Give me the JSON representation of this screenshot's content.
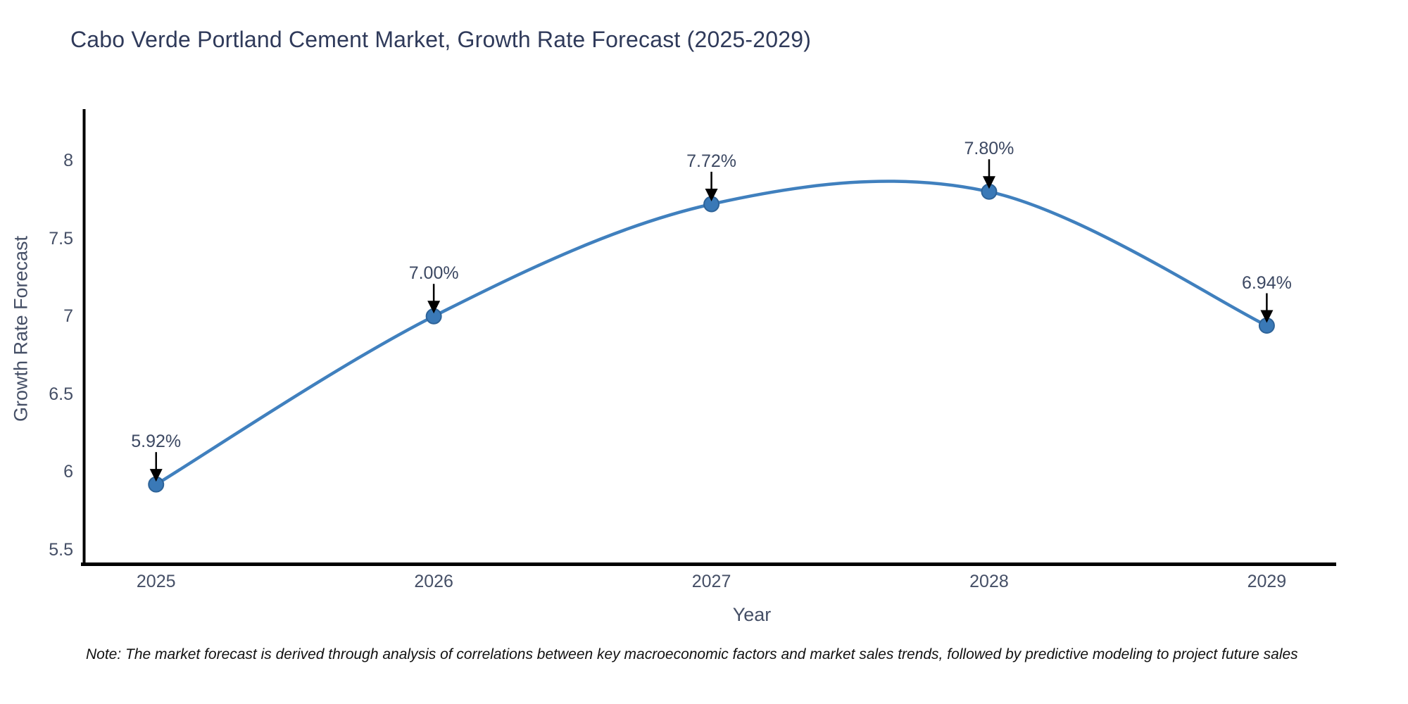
{
  "title": "Cabo Verde Portland Cement Market, Growth Rate Forecast (2025-2029)",
  "note": "Note: The market forecast is derived through analysis of correlations between key macroeconomic factors and market sales trends, followed by predictive modeling to project future sales",
  "chart_data": {
    "type": "line",
    "title": "Cabo Verde Portland Cement Market, Growth Rate Forecast (2025-2029)",
    "xlabel": "Year",
    "ylabel": "Growth Rate Forecast",
    "x": [
      2025,
      2026,
      2027,
      2028,
      2029
    ],
    "series": [
      {
        "name": "Growth Rate Forecast",
        "values": [
          5.92,
          7.0,
          7.72,
          7.8,
          6.94
        ]
      }
    ],
    "point_labels": [
      "5.92%",
      "7.00%",
      "7.72%",
      "7.80%",
      "6.94%"
    ],
    "xticks": [
      "2025",
      "2026",
      "2027",
      "2028",
      "2029"
    ],
    "yticks": [
      5.5,
      6,
      6.5,
      7,
      7.5,
      8
    ],
    "xlim": [
      2024.737,
      2029.25
    ],
    "ylim": [
      5.41,
      8.33
    ],
    "grid": false,
    "legend_position": "none",
    "smooth": true,
    "colors": {
      "line": "#4080be",
      "marker_fill": "#3a79b7",
      "marker_edge": "#2e6398",
      "axis": "#000000",
      "arrow": "#000000",
      "tick_label": "#454f66",
      "title": "#2f3a5a",
      "annotation": "#3c4862"
    }
  }
}
